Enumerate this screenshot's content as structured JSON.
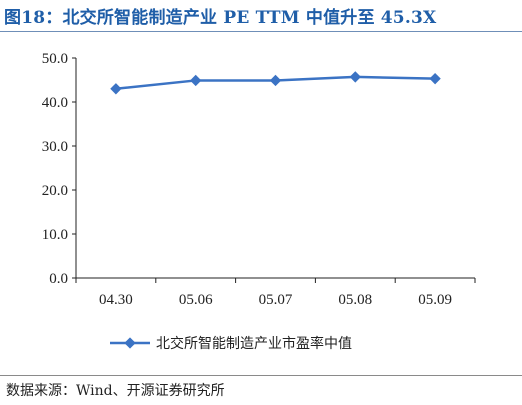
{
  "header": {
    "title": "图18：北交所智能制造产业 PE TTM 中值升至 45.3X"
  },
  "footer": {
    "source": "数据来源：Wind、开源证券研究所"
  },
  "colors": {
    "title": "#1f5ea8",
    "series": "#3b73c4"
  },
  "chart_data": {
    "type": "line",
    "title": "北交所智能制造产业 PE TTM 中值升至 45.3X",
    "xlabel": "",
    "ylabel": "",
    "categories": [
      "04.30",
      "05.06",
      "05.07",
      "05.08",
      "05.09"
    ],
    "series": [
      {
        "name": "北交所智能制造产业市盈率中值",
        "values": [
          43.0,
          44.9,
          44.9,
          45.7,
          45.3
        ]
      }
    ],
    "ylim": [
      0,
      50
    ],
    "yticks": [
      "0.0",
      "10.0",
      "20.0",
      "30.0",
      "40.0",
      "50.0"
    ],
    "grid": false,
    "legend": "bottom"
  }
}
